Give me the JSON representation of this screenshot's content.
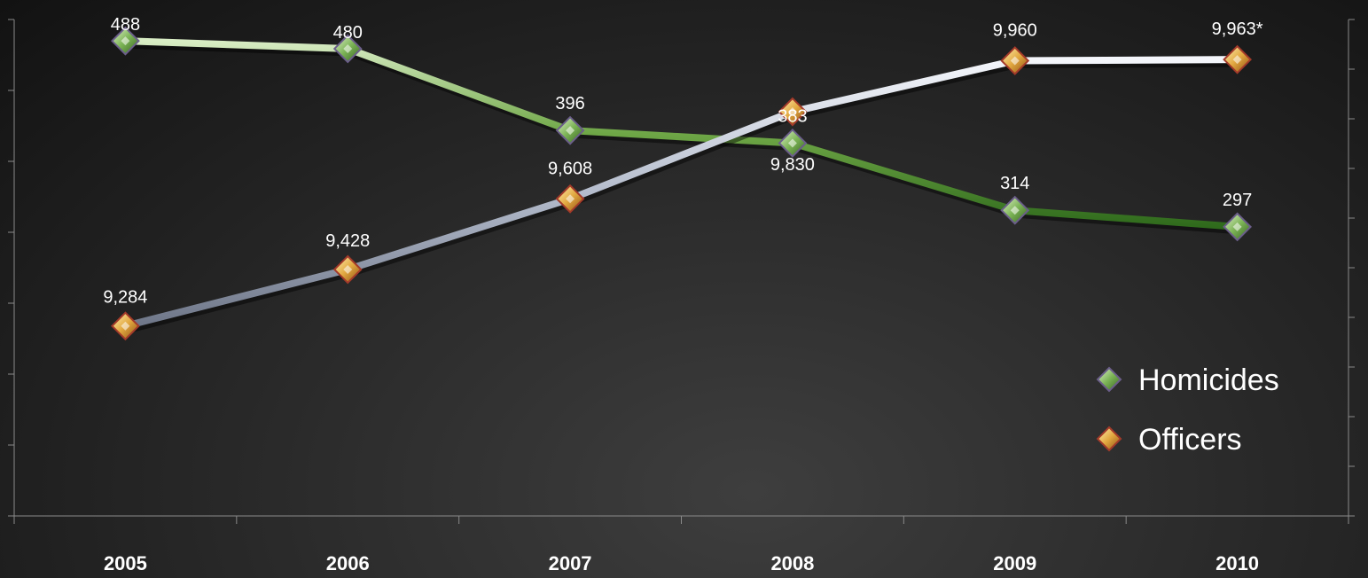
{
  "chart_data": {
    "type": "line",
    "categories": [
      "2005",
      "2006",
      "2007",
      "2008",
      "2009",
      "2010"
    ],
    "series": [
      {
        "name": "Homicides",
        "values": [
          488,
          480,
          396,
          383,
          314,
          297
        ],
        "labels": [
          "488",
          "480",
          "396",
          "383",
          "314",
          "297"
        ],
        "axis": "left",
        "color": "#7fb356"
      },
      {
        "name": "Officers",
        "values": [
          9284,
          9428,
          9608,
          9830,
          9960,
          9963
        ],
        "labels": [
          "9,284",
          "9,428",
          "9,608",
          "9,830",
          "9,960",
          "9,963*"
        ],
        "axis": "right",
        "color": "#b9c0cf"
      }
    ],
    "left_ylim": [
      0,
      510
    ],
    "right_ylim": [
      8800,
      10065
    ],
    "title": "",
    "xlabel": "",
    "ylabel": "",
    "legend": "bottom-right",
    "grid": false
  }
}
